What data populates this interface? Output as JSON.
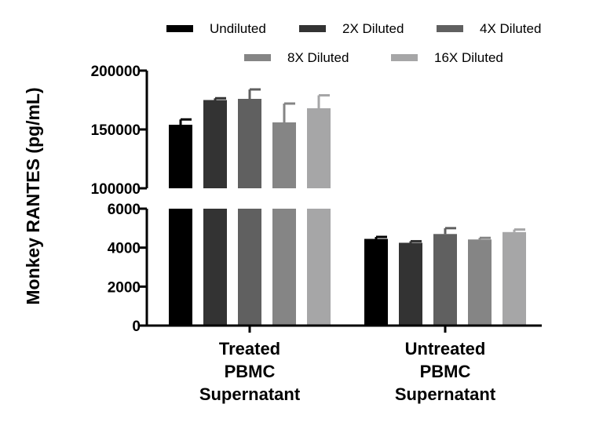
{
  "chart_data": {
    "type": "bar",
    "ylabel": "Monkey RANTES (pg/mL)",
    "categories": [
      [
        "Treated",
        "PBMC",
        "Supernatant"
      ],
      [
        "Untreated",
        "PBMC",
        "Supernatant"
      ]
    ],
    "y_axis_break": {
      "lower_segment": {
        "ylim": [
          0,
          6000
        ],
        "ticks": [
          "0",
          "2000",
          "4000",
          "6000"
        ]
      },
      "upper_segment": {
        "ylim": [
          100000,
          200000
        ],
        "ticks": [
          "100000",
          "150000",
          "200000"
        ]
      }
    },
    "legend_position": "top",
    "series": [
      {
        "name": "Undiluted",
        "color": "#000000",
        "values": [
          154000,
          4450
        ],
        "errors": [
          4500,
          100
        ]
      },
      {
        "name": "2X Diluted",
        "color": "#333333",
        "values": [
          175000,
          4250
        ],
        "errors": [
          1500,
          80
        ]
      },
      {
        "name": "4X Diluted",
        "color": "#606060",
        "values": [
          176000,
          4700
        ],
        "errors": [
          8000,
          300
        ]
      },
      {
        "name": "8X Diluted",
        "color": "#858585",
        "values": [
          156000,
          4420
        ],
        "errors": [
          16000,
          80
        ]
      },
      {
        "name": "16X Diluted",
        "color": "#a6a6a7",
        "values": [
          168000,
          4800
        ],
        "errors": [
          11000,
          130
        ]
      }
    ]
  }
}
